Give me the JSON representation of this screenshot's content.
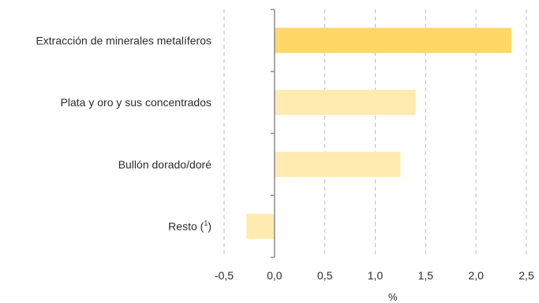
{
  "chart_data": {
    "type": "bar",
    "orientation": "horizontal",
    "title": "",
    "xlabel": "%",
    "ylabel": "",
    "categories": [
      "Extracción de minerales metalíferos",
      "Plata y oro y sus concentrados",
      "Bullón dorado/doré",
      "Resto"
    ],
    "category_notes": [
      "",
      "",
      "",
      "1"
    ],
    "values": [
      2.35,
      1.4,
      1.25,
      -0.28
    ],
    "bar_colors": [
      "#FDD867",
      "#FFEAB0",
      "#FFEAB0",
      "#FFEAB0"
    ],
    "xlim": [
      -0.5,
      2.5
    ],
    "xticks": [
      -0.5,
      0.0,
      0.5,
      1.0,
      1.5,
      2.0,
      2.5
    ],
    "xtick_labels": [
      "-0,5",
      "0,0",
      "0,5",
      "1,0",
      "1,5",
      "2,0",
      "2,5"
    ],
    "grid": "vertical-dashed",
    "grid_color": "#BDBDBD",
    "axis_color": "#8C8C8C",
    "legend": "none"
  }
}
